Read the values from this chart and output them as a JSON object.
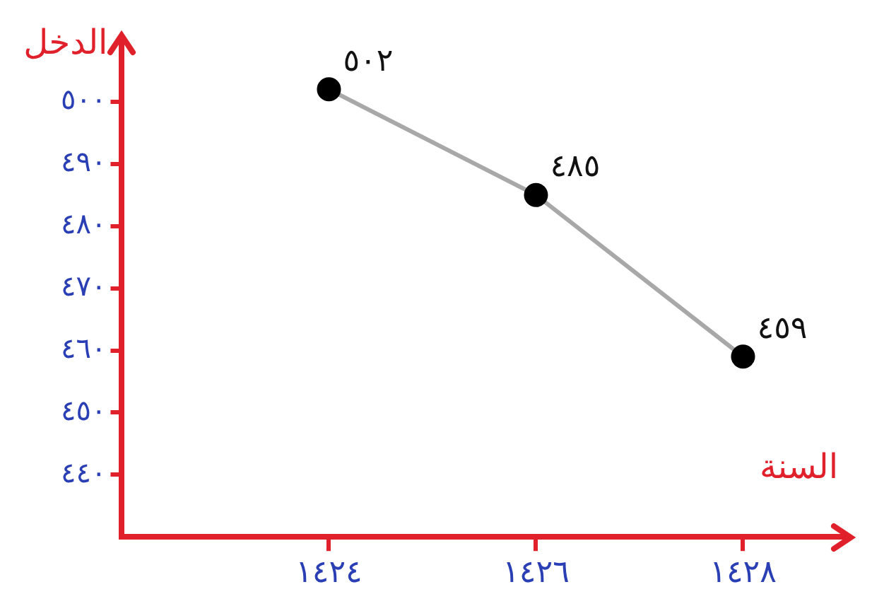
{
  "chart_data": {
    "type": "line",
    "xlabel": "السنة",
    "ylabel": "الدخل",
    "categories": [
      "١٤٢٤",
      "١٤٢٦",
      "١٤٢٨"
    ],
    "series": [
      {
        "color": "#a8a8a8",
        "values": [
          502,
          485,
          459
        ],
        "value_labels": [
          "٥٠٢",
          "٤٨٥",
          "٤٥٩"
        ]
      }
    ],
    "ylim": [
      430,
      510
    ],
    "yticks": [
      {
        "value": 440,
        "label": "٤٤٠"
      },
      {
        "value": 450,
        "label": "٤٥٠"
      },
      {
        "value": 460,
        "label": "٤٦٠"
      },
      {
        "value": 470,
        "label": "٤٧٠"
      },
      {
        "value": 480,
        "label": "٤٨٠"
      },
      {
        "value": 490,
        "label": "٤٩٠"
      },
      {
        "value": 500,
        "label": "٥٠٠"
      }
    ],
    "grid": false,
    "legend": false,
    "marker": "circle",
    "line_style": "solid"
  }
}
